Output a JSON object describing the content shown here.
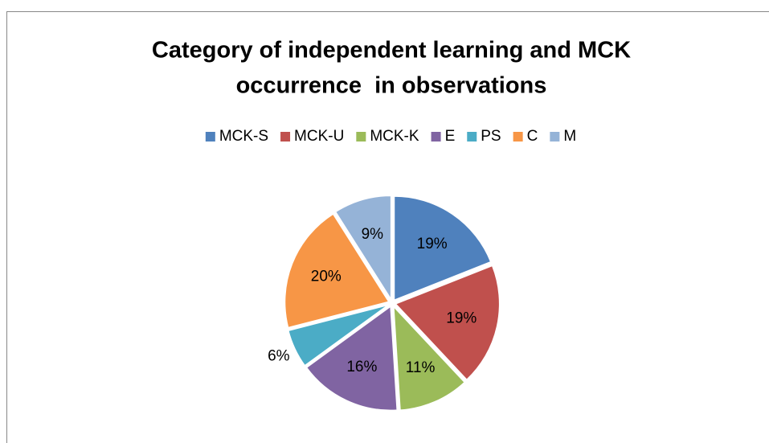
{
  "chart_data": {
    "type": "pie",
    "title": [
      "Category of independent learning and MCK",
      "occurrence  in observations"
    ],
    "categories": [
      "MCK-S",
      "MCK-U",
      "MCK-K",
      "E",
      "PS",
      "C",
      "M"
    ],
    "values": [
      19,
      19,
      11,
      16,
      6,
      20,
      9
    ],
    "value_labels": [
      "19%",
      "19%",
      "11%",
      "16%",
      "6%",
      "20%",
      "9%"
    ],
    "colors": [
      "#4f81bd",
      "#c0504d",
      "#9bbb59",
      "#8064a2",
      "#4bacc6",
      "#f79646",
      "#95b3d7"
    ],
    "legend": "top"
  }
}
